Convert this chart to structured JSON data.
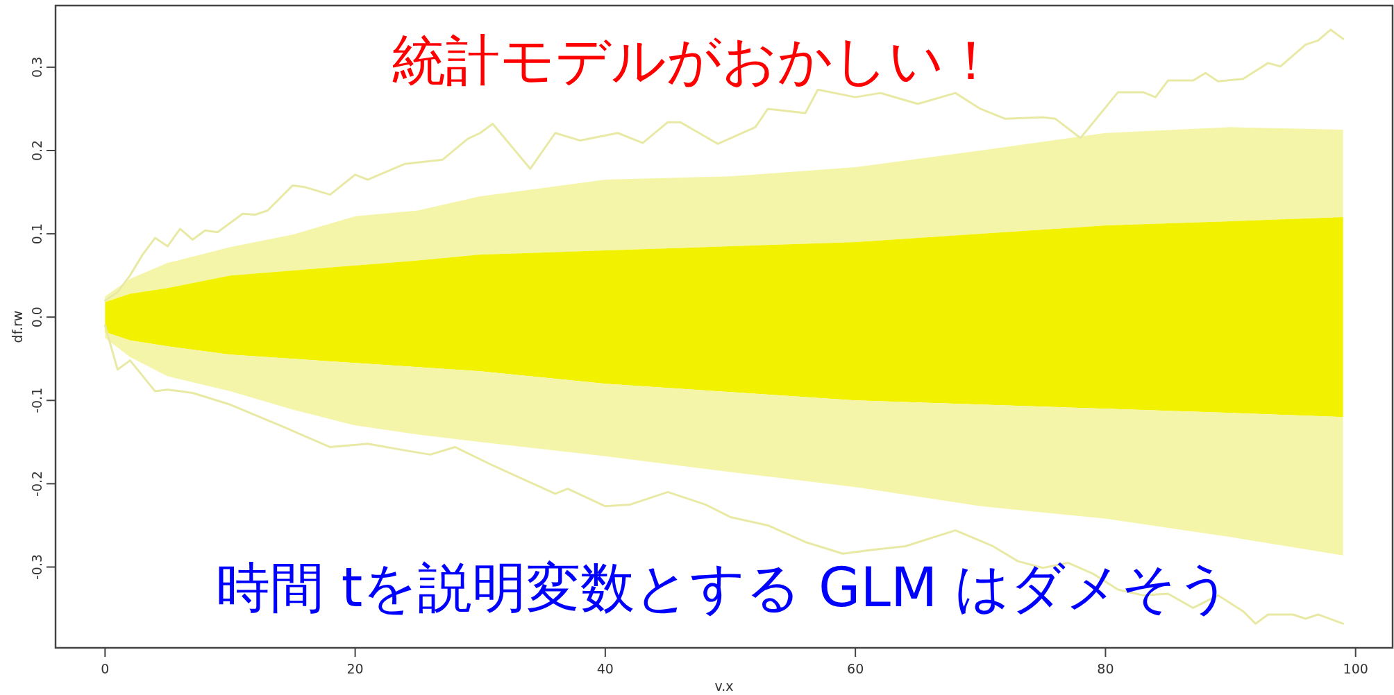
{
  "chart_data": {
    "type": "line",
    "title": "統計モデルがおかしい！",
    "annotations": [
      "時間 tを説明変数とする GLM はダメそう"
    ],
    "xlabel": "v.x",
    "ylabel": "df.rw",
    "xlim": [
      -3.96,
      102.96
    ],
    "ylim": [
      -0.397,
      0.374
    ],
    "xticks": [
      0,
      20,
      40,
      60,
      80,
      100
    ],
    "yticks": [
      -0.3,
      -0.2,
      -0.1,
      {
        "value": 0,
        "label": "0.0"
      },
      0.1,
      0.2,
      0.3
    ],
    "series": [
      {
        "color": "#f5f5aa",
        "x": [
          0,
          2,
          5,
          10,
          15,
          20,
          25,
          30,
          40,
          50,
          60,
          70,
          80,
          90,
          99
        ],
        "values": [
          null,
          null,
          null,
          null,
          null,
          null,
          null,
          null,
          null,
          null,
          null,
          null,
          null,
          null,
          null
        ],
        "upper": [
          0.025,
          0.046,
          0.065,
          0.084,
          0.099,
          0.121,
          0.128,
          0.145,
          0.165,
          0.169,
          0.18,
          0.2,
          0.221,
          0.228,
          0.225
        ],
        "lower": [
          0.018,
          0.028,
          0.035,
          0.05,
          0.056,
          0.062,
          0.068,
          0.075,
          0.08,
          0.085,
          0.09,
          0.1,
          0.11,
          0.115,
          0.12
        ]
      },
      {
        "color": "#f2f200",
        "x": [
          0,
          2,
          5,
          10,
          15,
          20,
          25,
          30,
          40,
          50,
          60,
          70,
          80,
          90,
          99
        ],
        "values": [
          null,
          null,
          null,
          null,
          null,
          null,
          null,
          null,
          null,
          null,
          null,
          null,
          null,
          null,
          null
        ],
        "upper": [
          0.018,
          0.028,
          0.035,
          0.05,
          0.056,
          0.062,
          0.068,
          0.075,
          0.08,
          0.085,
          0.09,
          0.1,
          0.11,
          0.115,
          0.12
        ],
        "lower": [
          -0.018,
          -0.028,
          -0.035,
          -0.045,
          -0.05,
          -0.055,
          -0.06,
          -0.065,
          -0.08,
          -0.09,
          -0.1,
          -0.105,
          -0.11,
          -0.115,
          -0.12
        ]
      },
      {
        "color": "#f5f5aa",
        "x": [
          0,
          2,
          5,
          10,
          15,
          20,
          25,
          30,
          40,
          50,
          60,
          70,
          80,
          90,
          99
        ],
        "values": [
          null,
          null,
          null,
          null,
          null,
          null,
          null,
          null,
          null,
          null,
          null,
          null,
          null,
          null,
          null
        ],
        "upper": [
          -0.018,
          -0.028,
          -0.035,
          -0.045,
          -0.05,
          -0.055,
          -0.06,
          -0.065,
          -0.08,
          -0.09,
          -0.1,
          -0.105,
          -0.11,
          -0.115,
          -0.12
        ],
        "lower": [
          -0.025,
          -0.048,
          -0.071,
          -0.089,
          -0.111,
          -0.13,
          -0.141,
          -0.15,
          -0.167,
          -0.186,
          -0.204,
          -0.227,
          -0.242,
          -0.264,
          -0.286
        ]
      },
      {
        "color": "#e9e9a6",
        "x": [
          0,
          1,
          2,
          3,
          4,
          5,
          6,
          7,
          8,
          9,
          11,
          12,
          13,
          15,
          16,
          18,
          20,
          21,
          24,
          27,
          29,
          30,
          31,
          34,
          36,
          38,
          41,
          43,
          45,
          46,
          49,
          52,
          53,
          56,
          57,
          60,
          62,
          65,
          68,
          70,
          72,
          75,
          76,
          78,
          81,
          83,
          84,
          85,
          87,
          88,
          89,
          91,
          93,
          94,
          96,
          97,
          98,
          99
        ],
        "values": [
          0.02,
          0.03,
          0.05,
          0.075,
          0.095,
          0.085,
          0.106,
          0.093,
          0.104,
          0.102,
          0.124,
          0.123,
          0.128,
          0.158,
          0.156,
          0.147,
          0.171,
          0.165,
          0.184,
          0.189,
          0.214,
          0.221,
          0.232,
          0.178,
          0.221,
          0.212,
          0.221,
          0.209,
          0.234,
          0.234,
          0.208,
          0.228,
          0.25,
          0.245,
          0.273,
          0.264,
          0.269,
          0.256,
          0.269,
          0.25,
          0.238,
          0.24,
          0.238,
          0.215,
          0.27,
          0.27,
          0.264,
          0.284,
          0.284,
          0.293,
          0.283,
          0.286,
          0.305,
          0.301,
          0.327,
          0.332,
          0.345,
          0.334
        ]
      },
      {
        "color": "#e9e9a6",
        "x": [
          0,
          1,
          2,
          4,
          5,
          7,
          10,
          14,
          18,
          21,
          24,
          26,
          28,
          31,
          36,
          37,
          40,
          42,
          45,
          48,
          50,
          53,
          56,
          59,
          61,
          64,
          68,
          71,
          73,
          75,
          77,
          79,
          81,
          83,
          85,
          87,
          89,
          91,
          92,
          93,
          95,
          96,
          97,
          99
        ],
        "values": [
          -0.01,
          -0.063,
          -0.052,
          -0.089,
          -0.087,
          -0.091,
          -0.105,
          -0.13,
          -0.156,
          -0.152,
          -0.16,
          -0.165,
          -0.156,
          -0.178,
          -0.212,
          -0.206,
          -0.227,
          -0.225,
          -0.21,
          -0.225,
          -0.24,
          -0.25,
          -0.27,
          -0.284,
          -0.28,
          -0.275,
          -0.256,
          -0.275,
          -0.293,
          -0.301,
          -0.295,
          -0.308,
          -0.327,
          -0.334,
          -0.332,
          -0.349,
          -0.334,
          -0.353,
          -0.368,
          -0.357,
          -0.357,
          -0.362,
          -0.357,
          -0.368
        ]
      }
    ]
  }
}
